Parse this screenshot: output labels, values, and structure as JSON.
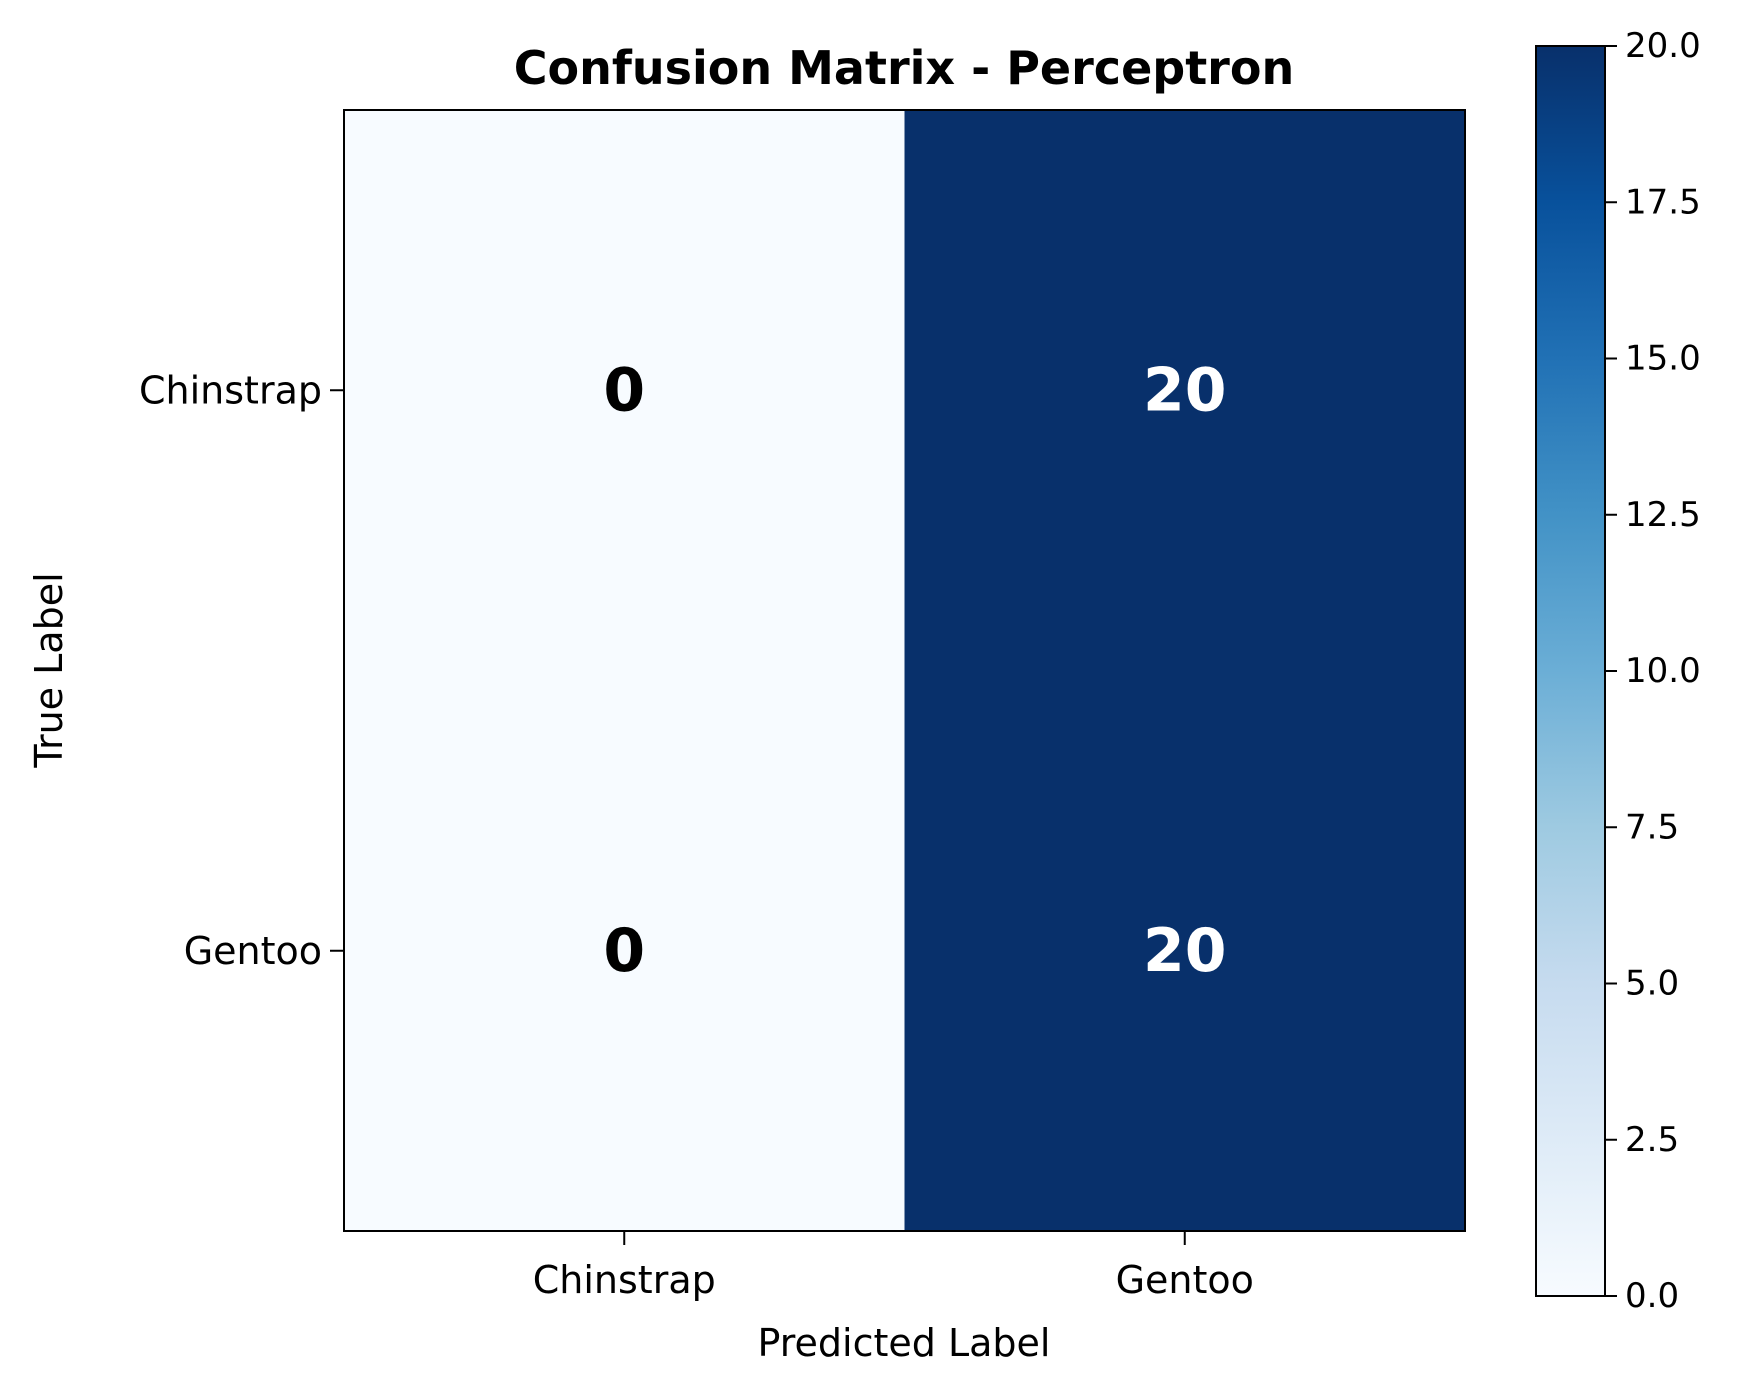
{
  "chart_data": {
    "type": "heatmap",
    "title": "Confusion Matrix - Perceptron",
    "xlabel": "Predicted Label",
    "ylabel": "True Label",
    "x_categories": [
      "Chinstrap",
      "Gentoo"
    ],
    "y_categories": [
      "Chinstrap",
      "Gentoo"
    ],
    "values": [
      [
        0,
        20
      ],
      [
        0,
        20
      ]
    ],
    "colormap": "Blues",
    "colorbar": {
      "range": [
        0,
        20
      ],
      "ticks": [
        0,
        2.5,
        5,
        7.5,
        10,
        12.5,
        15,
        17.5,
        20
      ],
      "tick_labels": [
        "0.0",
        "2.5",
        "5.0",
        "7.5",
        "10.0",
        "12.5",
        "15.0",
        "17.5",
        "20.0"
      ]
    },
    "colors": {
      "low": "#f7fbff",
      "high": "#08306b",
      "text_on_dark": "#ffffff",
      "text_on_light": "#000000"
    },
    "grid": false
  }
}
